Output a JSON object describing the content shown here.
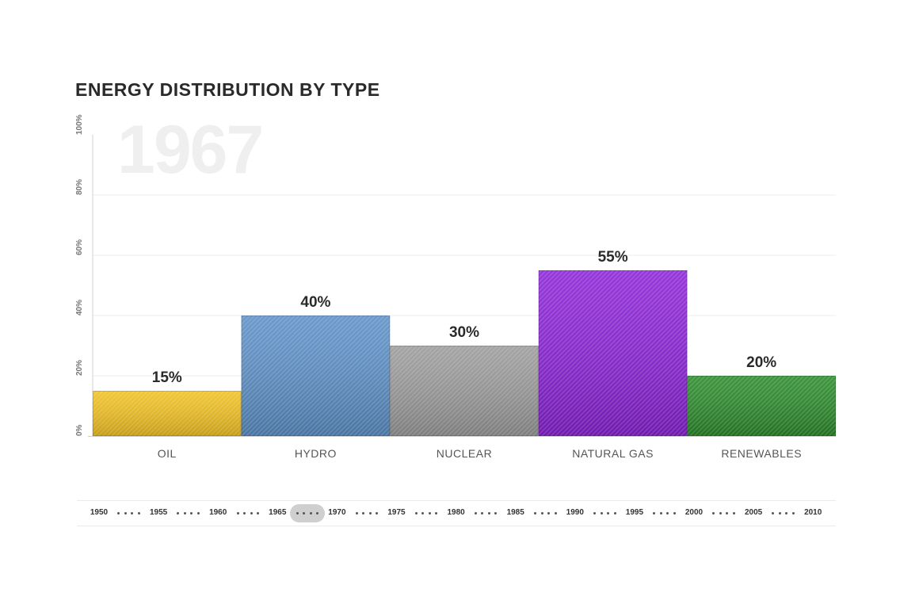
{
  "chart_data": {
    "type": "bar",
    "title": "ENERGY DISTRIBUTION BY TYPE",
    "year": "1967",
    "categories": [
      "OIL",
      "HYDRO",
      "NUCLEAR",
      "NATURAL GAS",
      "RENEWABLES"
    ],
    "values": [
      15,
      40,
      30,
      55,
      20
    ],
    "value_labels": [
      "15%",
      "40%",
      "30%",
      "55%",
      "20%"
    ],
    "colors": [
      "#f0c020",
      "#5b8fc6",
      "#9a9a9a",
      "#8a22d6",
      "#2a8a2a"
    ],
    "ylim": [
      0,
      100
    ],
    "yticks": [
      0,
      20,
      40,
      60,
      80,
      100
    ],
    "ytick_labels": [
      "0%",
      "20%",
      "40%",
      "60%",
      "80%",
      "100%"
    ],
    "grid": true,
    "xlabel": "",
    "ylabel": ""
  },
  "timeline": {
    "years": [
      "1950",
      "1955",
      "1960",
      "1965",
      "1970",
      "1975",
      "1980",
      "1985",
      "1990",
      "1995",
      "2000",
      "2005",
      "2010"
    ],
    "selected_year": "1967"
  }
}
